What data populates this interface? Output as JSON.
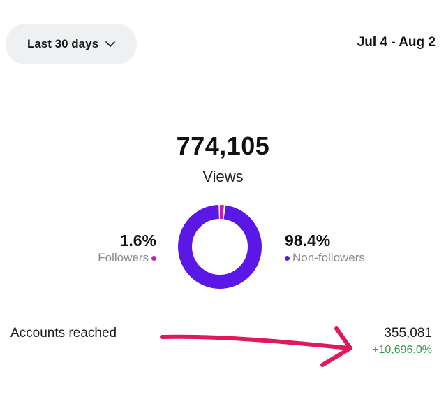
{
  "header": {
    "range_label": "Last 30 days",
    "date_range": "Jul 4 - Aug 2"
  },
  "views": {
    "total": "774,105",
    "label": "Views"
  },
  "breakdown": {
    "followers": {
      "percent": "1.6%",
      "label": "Followers",
      "value": 1.6,
      "color": "#d21ba4"
    },
    "non_followers": {
      "percent": "98.4%",
      "label": "Non-followers",
      "value": 98.4,
      "color": "#5a17e6"
    }
  },
  "accounts_reached": {
    "label": "Accounts reached",
    "value": "355,081",
    "change": "+10,696.0%"
  },
  "annotation": {
    "color": "#e0195f"
  },
  "colors": {
    "accent_purple": "#5a17e6",
    "accent_pink": "#d21ba4",
    "positive_green": "#2e9d4a"
  },
  "icons": {
    "range_dropdown": "chevron-down-icon",
    "annotation": "arrow-annotation-icon"
  }
}
